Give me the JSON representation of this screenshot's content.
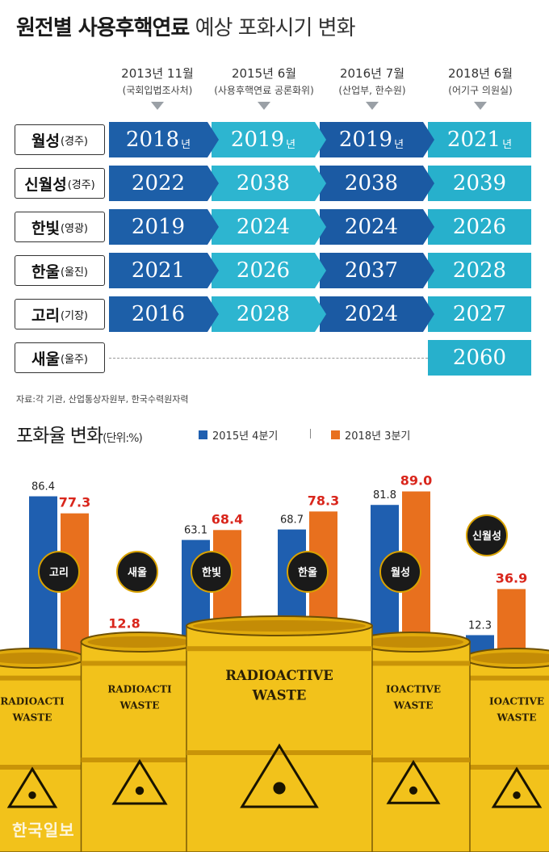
{
  "title": {
    "bold": "원전별 사용후핵연료",
    "light": "예상 포화시기 변화"
  },
  "forecast": {
    "columns": [
      {
        "year": "2013년 11월",
        "source": "(국회입법조사처)"
      },
      {
        "year": "2015년 6월",
        "source": "(사용후핵연료 공론화위)"
      },
      {
        "year": "2016년 7월",
        "source": "(산업부, 한수원)"
      },
      {
        "year": "2018년 6월",
        "source": "(어기구 의원실)"
      }
    ],
    "year_unit": "년",
    "rows": [
      {
        "name": "월성",
        "region": "(경주)",
        "values": [
          "2018",
          "2019",
          "2019",
          "2021"
        ]
      },
      {
        "name": "신월성",
        "region": "(경주)",
        "values": [
          "2022",
          "2038",
          "2038",
          "2039"
        ]
      },
      {
        "name": "한빛",
        "region": "(영광)",
        "values": [
          "2019",
          "2024",
          "2024",
          "2026"
        ]
      },
      {
        "name": "한울",
        "region": "(울진)",
        "values": [
          "2021",
          "2026",
          "2037",
          "2028"
        ]
      },
      {
        "name": "고리",
        "region": "(기장)",
        "values": [
          "2016",
          "2028",
          "2024",
          "2027"
        ]
      },
      {
        "name": "새울",
        "region": "(울주)",
        "values": [
          "",
          "",
          "",
          "2060"
        ]
      }
    ]
  },
  "source_note": "자료:각 기관, 산업통상자원부, 한국수력원자력",
  "chart_data": {
    "type": "bar",
    "title": "포화율 변화",
    "unit": "(단위:%)",
    "categories": [
      "고리",
      "새울",
      "한빛",
      "한울",
      "월성",
      "신월성"
    ],
    "series": [
      {
        "name": "2015년 4분기",
        "color": "#1f5fb0",
        "values": [
          86.4,
          null,
          63.1,
          68.7,
          81.8,
          12.3
        ]
      },
      {
        "name": "2018년 3분기",
        "color": "#e8701e",
        "values": [
          77.3,
          12.8,
          68.4,
          78.3,
          89.0,
          36.9
        ]
      }
    ],
    "label_colors": {
      "2015": "#222222",
      "2018": "#d9261c"
    },
    "barrel_text": [
      "RADIOACTIVE",
      "WASTE"
    ],
    "barrel_text_cut": [
      "RADIOACTI",
      "IOACTIVE"
    ]
  },
  "watermark": "한국일보"
}
